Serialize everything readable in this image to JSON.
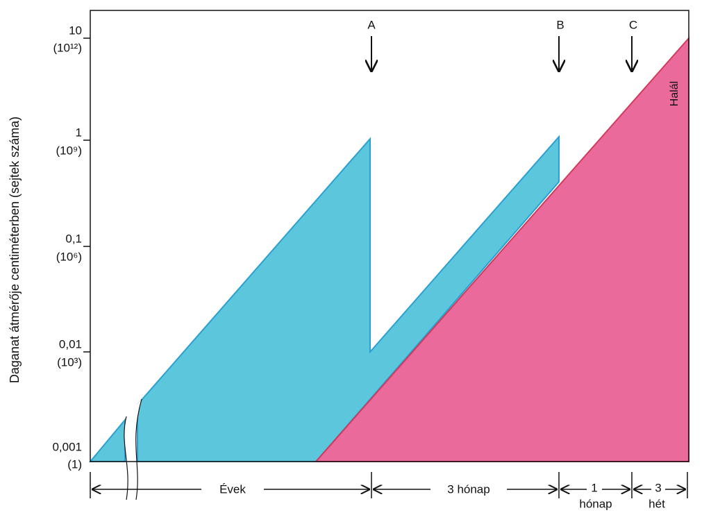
{
  "y_axis_label": "Daganat átmérője centiméterben (sejtek száma)",
  "y_ticks": [
    {
      "diameter": "10",
      "cells": "(10¹²)"
    },
    {
      "diameter": "1",
      "cells": "(10⁹)"
    },
    {
      "diameter": "0,1",
      "cells": "(10⁶)"
    },
    {
      "diameter": "0,01",
      "cells": "(10³)"
    },
    {
      "diameter": "0,001",
      "cells": "(1)"
    }
  ],
  "markers": [
    "A",
    "B",
    "C"
  ],
  "death_label": "Halál",
  "intervals": [
    {
      "label": "Évek"
    },
    {
      "label": "3 hónap"
    },
    {
      "label": "1",
      "below": "hónap"
    },
    {
      "label": "3",
      "below": "hét"
    }
  ]
}
